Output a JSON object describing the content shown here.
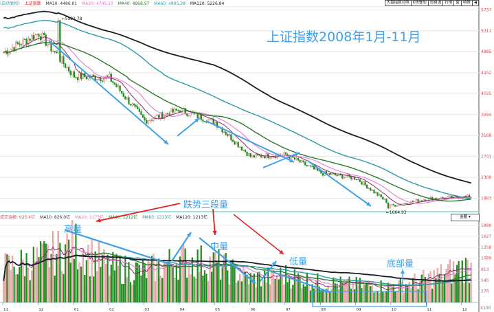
{
  "legend_top": {
    "prefix": "(自动复权)",
    "name": "上证指数",
    "ma10": "MA10: 4486.01",
    "ma20": "MA20: 4705.13",
    "ma40": "MA40: 4968.97",
    "ma60": "MA60: 4895.28",
    "ma120": "MA120: 5226.84"
  },
  "legend_vol": {
    "amount": "成交金额: 925.4亿",
    "ma10": "MA10: 826.0亿",
    "ma20": "MA20: 1173亿",
    "ma40": "MA40: 1212亿",
    "ma60": "MA60: 1213亿",
    "ma120": "MA120: 1213亿"
  },
  "toolbar": [
    "大盘指数对照",
    "K线叠加",
    "加自选",
    "行情",
    "窗",
    "特殊",
    "◀"
  ],
  "vol_select": "金额 ▾",
  "colors": {
    "up": "#e8a0a0",
    "down": "#1e8c1e",
    "ma10": "#8b2a6a",
    "ma20": "#e070d0",
    "ma40": "#2a7a2a",
    "ma60": "#2a9aa8",
    "ma120": "#1a1a2a",
    "annotation_blue": "#3fa0e8",
    "annotation_red": "#e02020",
    "axis": "#d05050"
  },
  "annotations": {
    "title": "上证指数2008年1月-11月",
    "trend": "跌势三段量",
    "high": "高量",
    "mid": "中量",
    "low": "低量",
    "bottom": "底部量"
  },
  "chart_data": [
    {
      "type": "candlestick",
      "title": "上证指数2008年1月-11月",
      "xlabel": "",
      "ylabel": "",
      "y_ticks": [
        5737,
        5311,
        4885,
        4452,
        4025,
        3594,
        3168,
        2741,
        2309,
        1883
      ],
      "ylim": [
        1650,
        5800
      ],
      "x_ticks": [
        "11",
        "12",
        "01",
        "02",
        "03",
        "04",
        "05",
        "06",
        "07",
        "08",
        "09",
        "10",
        "11",
        "12"
      ],
      "annotations": [
        {
          "label": "5522.78",
          "type": "high"
        },
        {
          "label": "1664.93",
          "type": "low"
        }
      ],
      "series_close_approx": [
        {
          "month": "2007-11",
          "value": 4870
        },
        {
          "month": "2007-12",
          "value": 5261
        },
        {
          "month": "2008-01",
          "value": 4383
        },
        {
          "month": "2008-02",
          "value": 4348
        },
        {
          "month": "2008-03",
          "value": 3472
        },
        {
          "month": "2008-04",
          "value": 3693
        },
        {
          "month": "2008-05",
          "value": 3433
        },
        {
          "month": "2008-06",
          "value": 2736
        },
        {
          "month": "2008-07",
          "value": 2775
        },
        {
          "month": "2008-08",
          "value": 2397
        },
        {
          "month": "2008-09",
          "value": 2293
        },
        {
          "month": "2008-10",
          "value": 1729
        },
        {
          "month": "2008-11",
          "value": 1871
        },
        {
          "month": "2008-12",
          "value": 1911
        }
      ],
      "ma_legend": {
        "MA10": 4486.01,
        "MA20": 4705.13,
        "MA40": 4968.97,
        "MA60": 4895.28,
        "MA120": 5226.84
      }
    },
    {
      "type": "bar",
      "title": "成交金额",
      "ylabel": "成交金额(亿)",
      "y_ticks": [
        1896,
        1627,
        1358,
        1089,
        813,
        545,
        276
      ],
      "y_unit": "X100",
      "x_ticks": [
        "11",
        "12",
        "01",
        "02",
        "03",
        "04",
        "05",
        "06",
        "07",
        "08",
        "09",
        "10",
        "11",
        "12"
      ],
      "monthly_avg_approx": [
        {
          "month": "2007-11",
          "value": 900
        },
        {
          "month": "2007-12",
          "value": 1100
        },
        {
          "month": "2008-01",
          "value": 1500
        },
        {
          "month": "2008-02",
          "value": 900
        },
        {
          "month": "2008-03",
          "value": 800
        },
        {
          "month": "2008-04",
          "value": 1100
        },
        {
          "month": "2008-05",
          "value": 1000
        },
        {
          "month": "2008-06",
          "value": 600
        },
        {
          "month": "2008-07",
          "value": 700
        },
        {
          "month": "2008-08",
          "value": 500
        },
        {
          "month": "2008-09",
          "value": 450
        },
        {
          "month": "2008-10",
          "value": 400
        },
        {
          "month": "2008-11",
          "value": 600
        },
        {
          "month": "2008-12",
          "value": 900
        }
      ],
      "ma_legend": {
        "amount": 925.4,
        "MA10": 826.0,
        "MA20": 1173,
        "MA40": 1212,
        "MA60": 1213,
        "MA120": 1213
      }
    }
  ]
}
